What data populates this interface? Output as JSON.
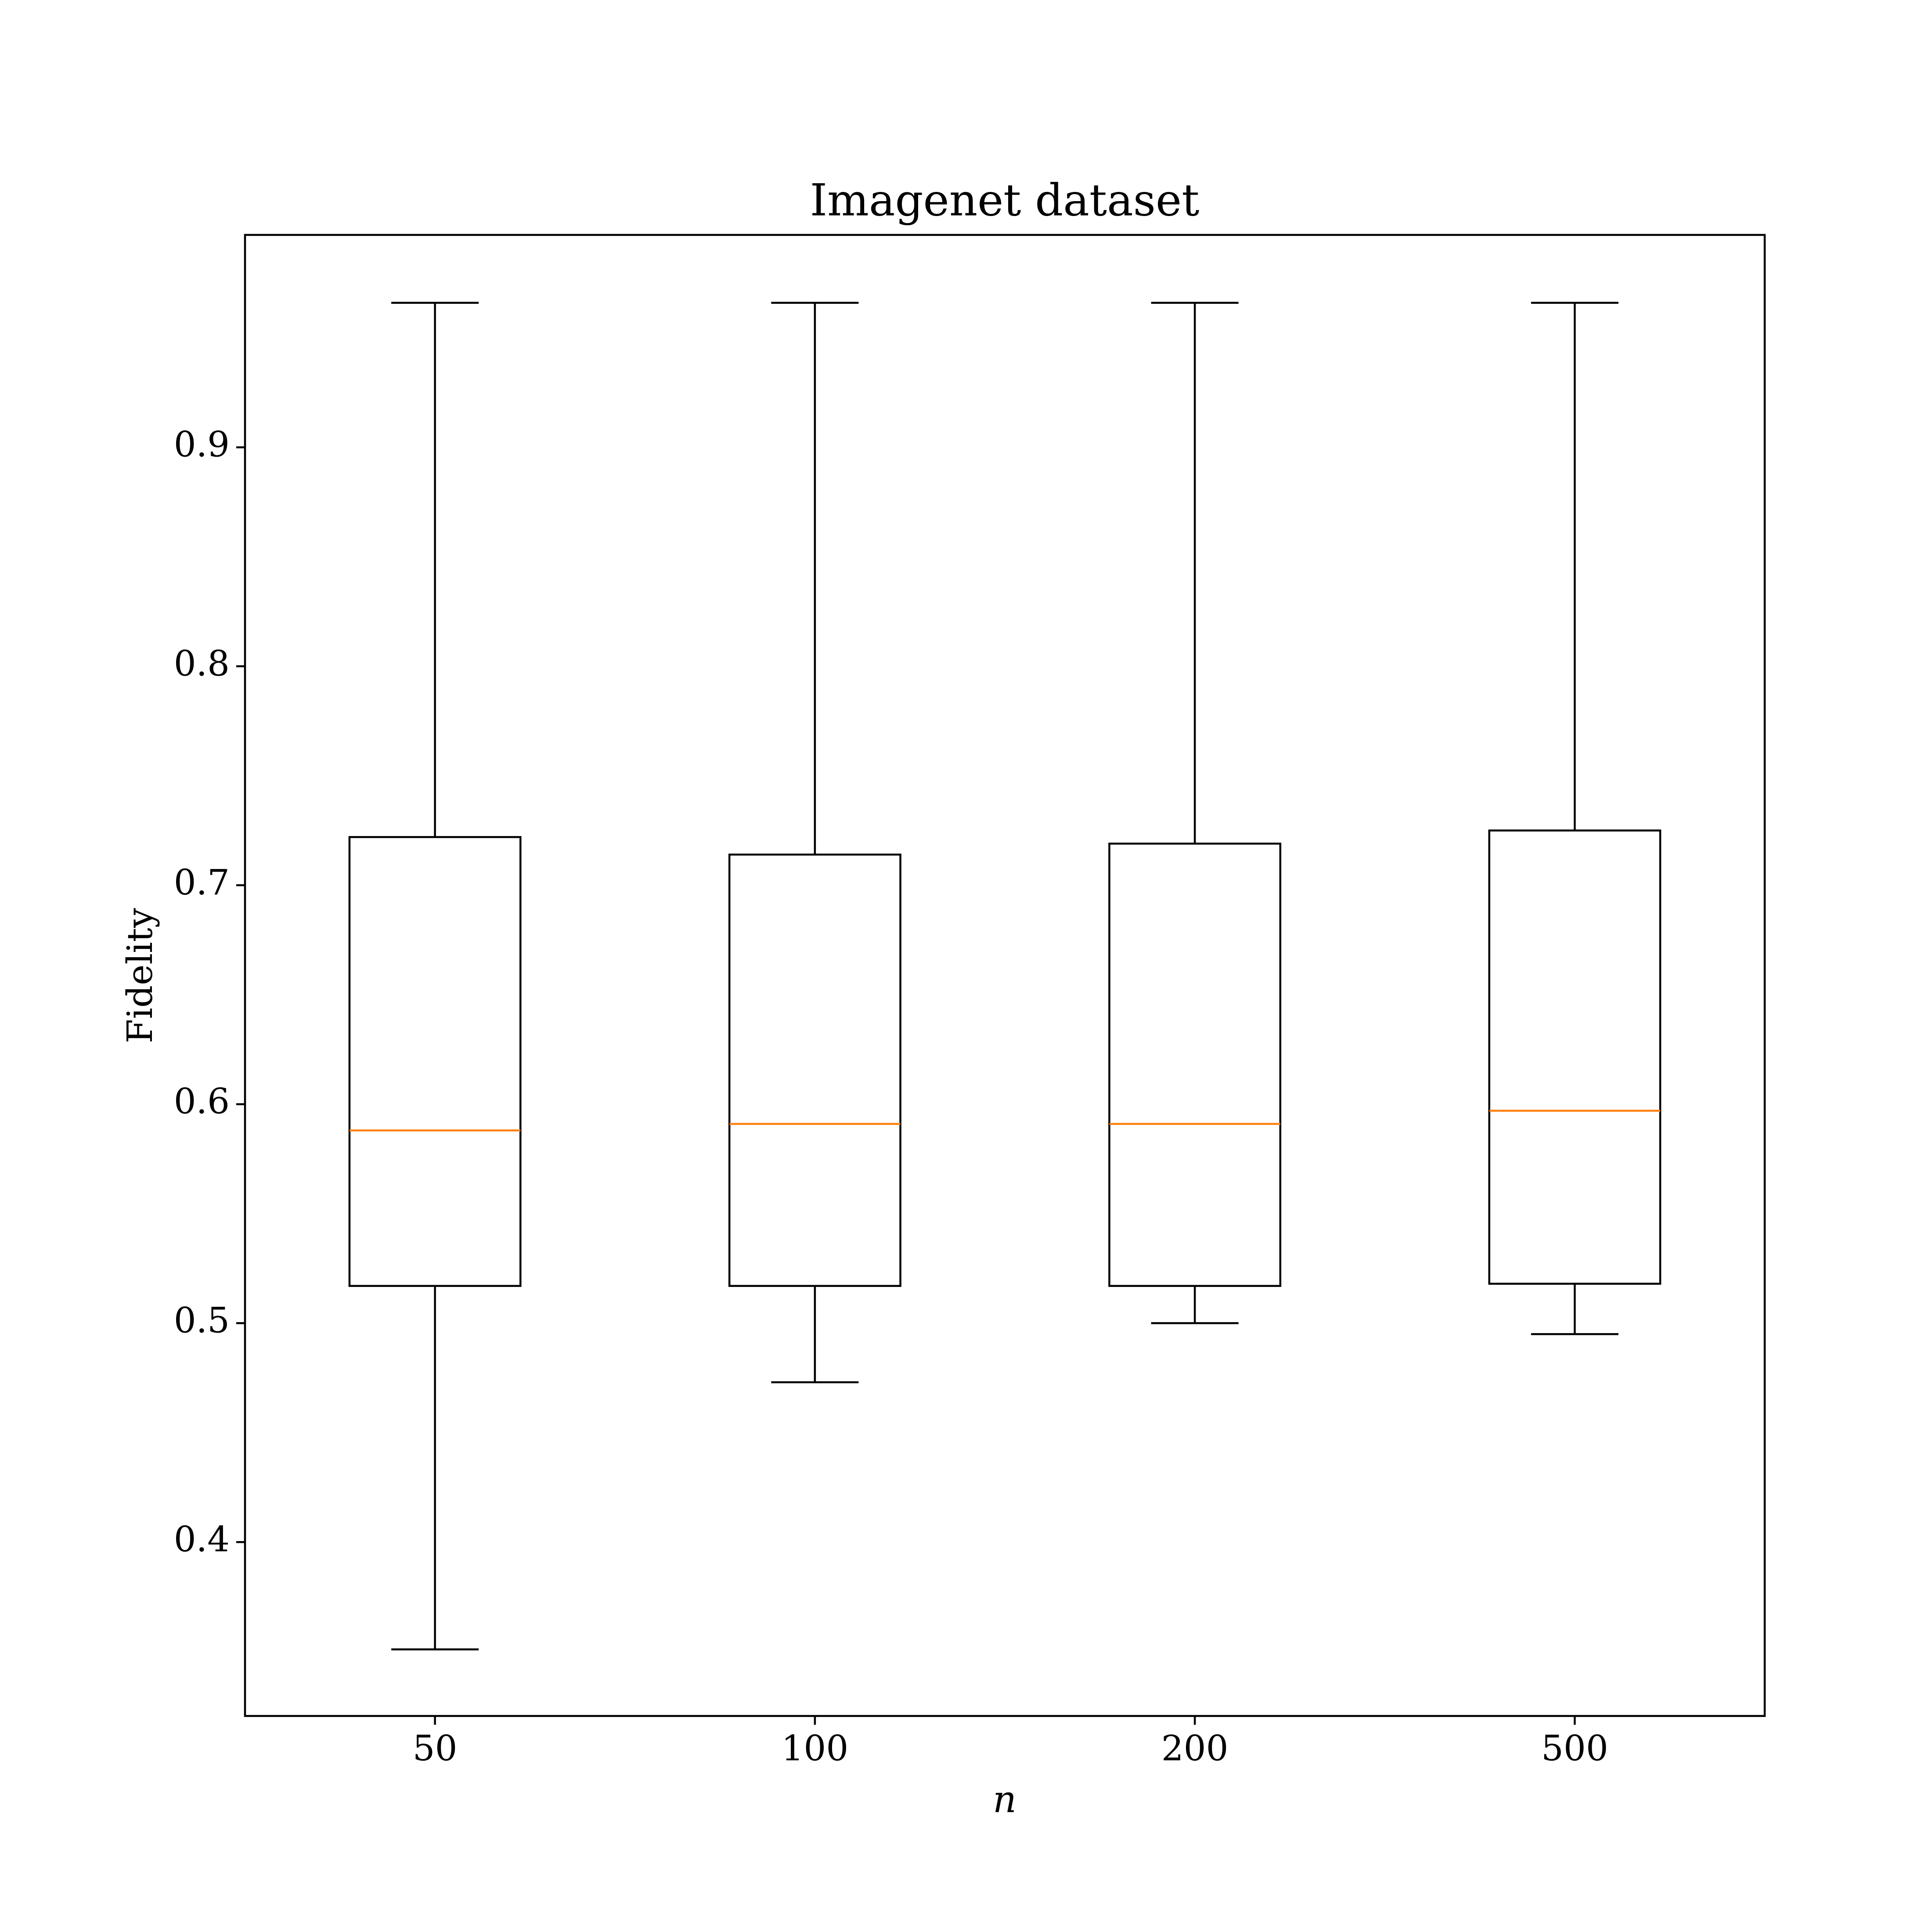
{
  "chart_data": {
    "type": "box",
    "title": "Imagenet dataset",
    "x_label": "n",
    "y_label": "Fidelity",
    "categories": [
      "50",
      "100",
      "200",
      "500"
    ],
    "low": [
      0.351,
      0.473,
      0.5,
      0.495
    ],
    "q1": [
      0.517,
      0.517,
      0.517,
      0.518
    ],
    "median": [
      0.588,
      0.591,
      0.591,
      0.597
    ],
    "q3": [
      0.722,
      0.714,
      0.719,
      0.725
    ],
    "high": [
      0.966,
      0.966,
      0.966,
      0.966
    ],
    "color": "#000000",
    "median_color": "#ff7f0e",
    "ylim": [
      0.3206,
      0.997
    ],
    "yticks": [
      0.4,
      0.5,
      0.6,
      0.7,
      0.8,
      0.9
    ],
    "grid": false
  }
}
